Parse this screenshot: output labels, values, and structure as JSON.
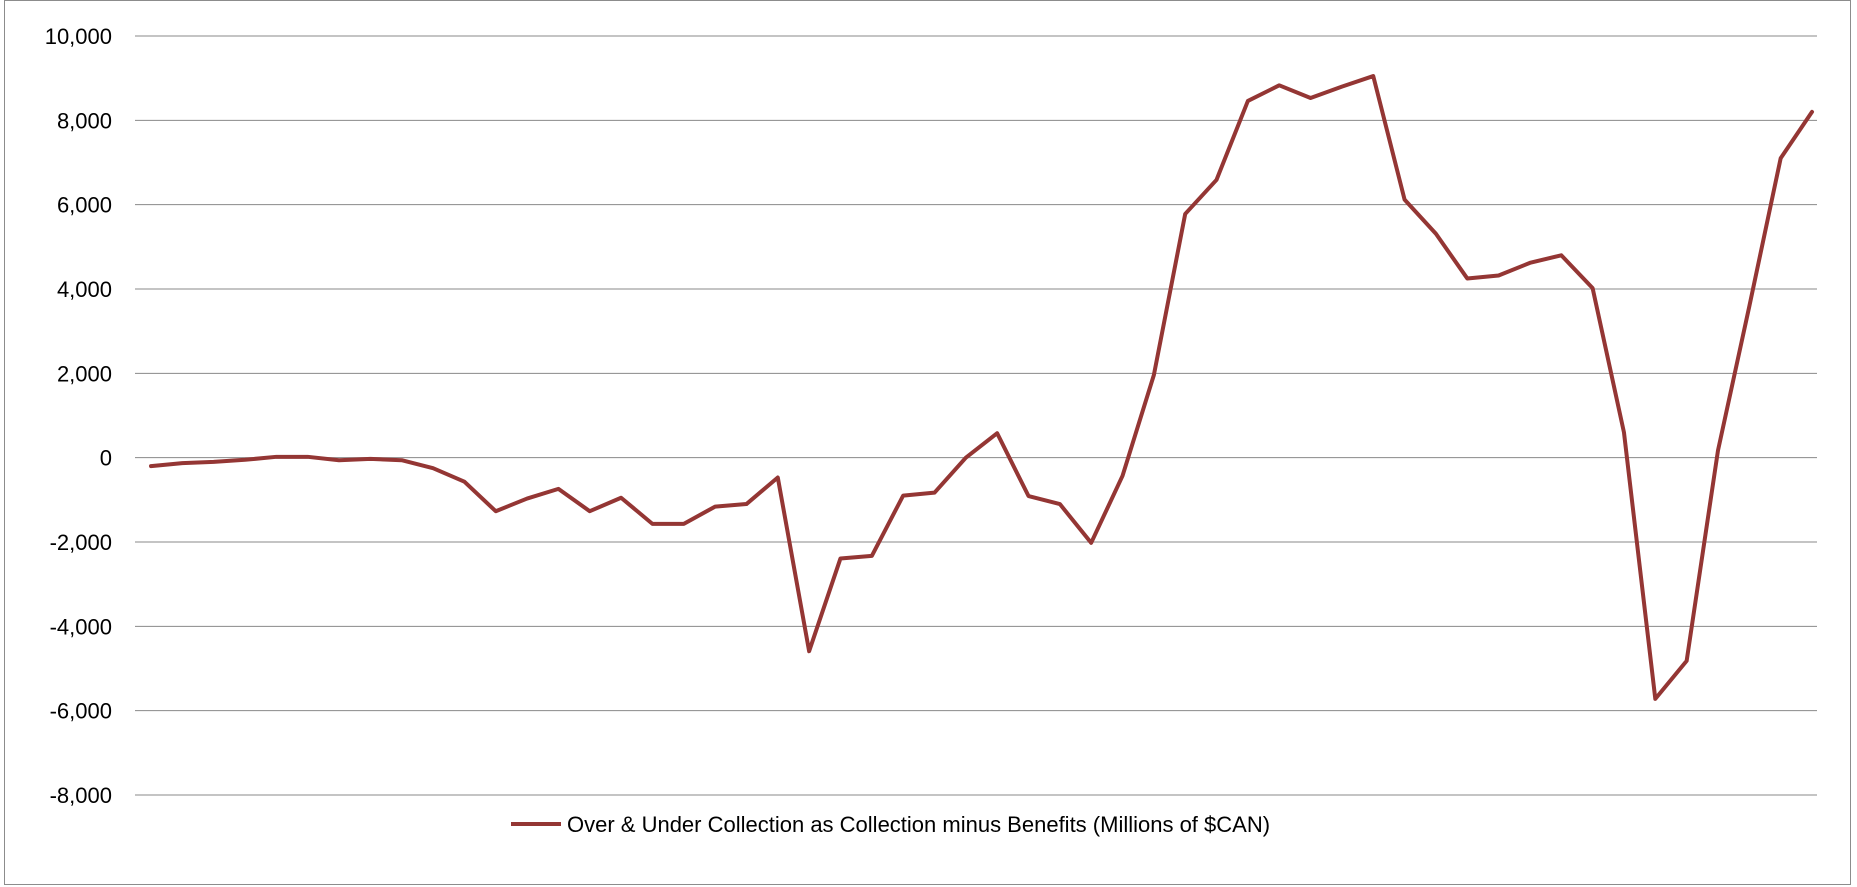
{
  "chart_data": {
    "type": "line",
    "title": "",
    "xlabel": "",
    "ylabel": "",
    "ylim": [
      -8000,
      10000
    ],
    "yticks": [
      10000,
      8000,
      6000,
      4000,
      2000,
      0,
      -2000,
      -4000,
      -6000,
      -8000
    ],
    "ytick_labels": [
      "10,000",
      "8,000",
      "6,000",
      "4,000",
      "2,000",
      "0",
      "-2,000",
      "-4,000",
      "-6,000",
      "-8,000"
    ],
    "grid": true,
    "legend_position": "bottom",
    "series": [
      {
        "name": "Over & Under Collection as Collection minus Benefits (Millions of $CAN)",
        "color": "#943634",
        "values": [
          -200,
          -130,
          -100,
          -50,
          20,
          20,
          -60,
          -30,
          -60,
          -250,
          -570,
          -1270,
          -970,
          -740,
          -1270,
          -950,
          -1570,
          -1570,
          -1160,
          -1100,
          -470,
          -4590,
          -2390,
          -2330,
          -900,
          -830,
          0,
          580,
          -910,
          -1100,
          -2020,
          -430,
          1960,
          5780,
          6590,
          8460,
          8830,
          8530,
          8800,
          9050,
          6120,
          5310,
          4250,
          4320,
          4620,
          4800,
          4020,
          600,
          -5720,
          -4820,
          170,
          3590,
          7100,
          8200
        ]
      }
    ]
  }
}
